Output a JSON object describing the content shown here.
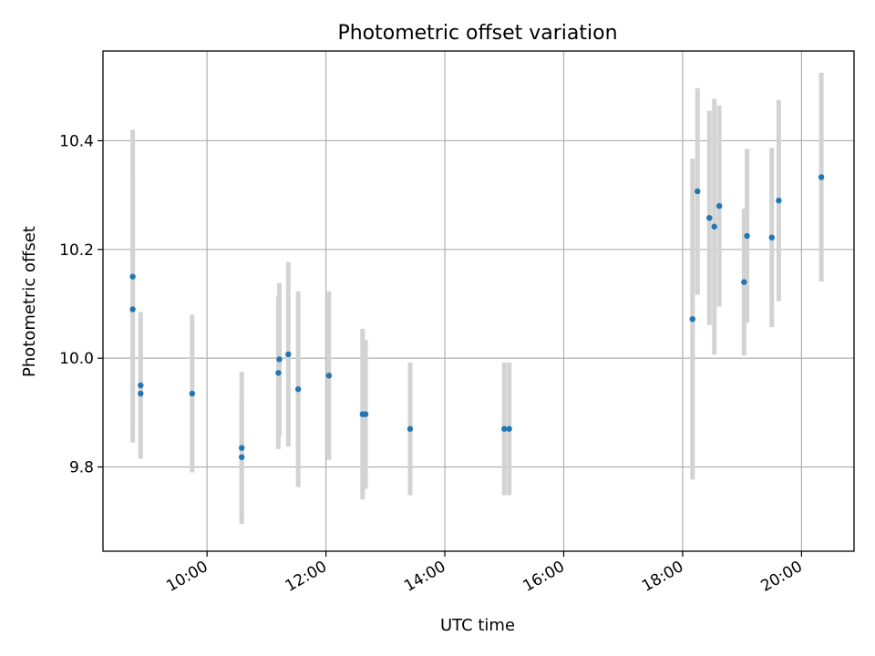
{
  "chart_data": {
    "type": "scatter",
    "title": "Photometric offset variation",
    "xlabel": "UTC time",
    "ylabel": "Photometric offset",
    "x_tick_labels": [
      "10:00",
      "12:00",
      "14:00",
      "16:00",
      "18:00",
      "20:00"
    ],
    "y_tick_labels": [
      "9.8",
      "10.0",
      "10.2",
      "10.4"
    ],
    "xlim": [
      "08:15",
      "20:53"
    ],
    "ylim": [
      9.645,
      10.565
    ],
    "grid": true,
    "marker_color": "#1f77b4",
    "errorbar_color": "#d3d3d3",
    "points": [
      {
        "x": "08:45",
        "y": 10.15,
        "err": 0.27
      },
      {
        "x": "08:45",
        "y": 10.09,
        "err": 0.245
      },
      {
        "x": "08:53",
        "y": 9.95,
        "err": 0.135
      },
      {
        "x": "08:53",
        "y": 9.935,
        "err": 0.12
      },
      {
        "x": "09:45",
        "y": 9.935,
        "err": 0.145
      },
      {
        "x": "10:35",
        "y": 9.835,
        "err": 0.14
      },
      {
        "x": "10:35",
        "y": 9.818,
        "err": 0.115
      },
      {
        "x": "11:12",
        "y": 9.973,
        "err": 0.14
      },
      {
        "x": "11:13",
        "y": 9.998,
        "err": 0.14
      },
      {
        "x": "11:22",
        "y": 10.007,
        "err": 0.17
      },
      {
        "x": "11:32",
        "y": 9.943,
        "err": 0.18
      },
      {
        "x": "12:03",
        "y": 9.968,
        "err": 0.155
      },
      {
        "x": "12:37",
        "y": 9.897,
        "err": 0.157
      },
      {
        "x": "12:40",
        "y": 9.897,
        "err": 0.137
      },
      {
        "x": "13:25",
        "y": 9.87,
        "err": 0.122
      },
      {
        "x": "15:00",
        "y": 9.87,
        "err": 0.122
      },
      {
        "x": "15:05",
        "y": 9.87,
        "err": 0.122
      },
      {
        "x": "18:10",
        "y": 10.072,
        "err": 0.295
      },
      {
        "x": "18:15",
        "y": 10.307,
        "err": 0.19
      },
      {
        "x": "18:27",
        "y": 10.258,
        "err": 0.197
      },
      {
        "x": "18:32",
        "y": 10.242,
        "err": 0.235
      },
      {
        "x": "18:37",
        "y": 10.28,
        "err": 0.185
      },
      {
        "x": "19:02",
        "y": 10.14,
        "err": 0.135
      },
      {
        "x": "19:05",
        "y": 10.225,
        "err": 0.16
      },
      {
        "x": "19:30",
        "y": 10.222,
        "err": 0.165
      },
      {
        "x": "19:37",
        "y": 10.29,
        "err": 0.185
      },
      {
        "x": "20:20",
        "y": 10.333,
        "err": 0.192
      }
    ]
  }
}
